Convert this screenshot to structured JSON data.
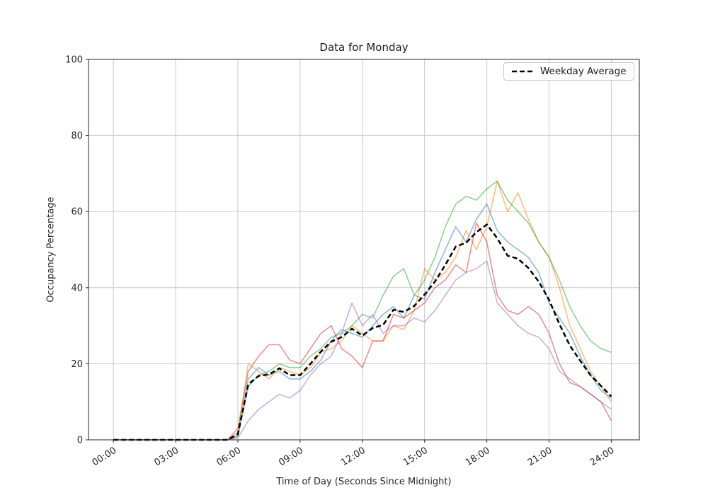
{
  "chart_data": {
    "type": "line",
    "title": "Data for Monday",
    "xlabel": "Time of Day (Seconds Since Midnight)",
    "ylabel": "Occupancy Percentage",
    "xlim": [
      -1.2,
      25.35
    ],
    "ylim": [
      0,
      100
    ],
    "grid": true,
    "grid_color": "#c9c9c9",
    "axis_color": "#262626",
    "background_color": "#ffffff",
    "legend_position": "upper right",
    "x_tick_values": [
      0,
      3,
      6,
      9,
      12,
      15,
      18,
      21,
      24
    ],
    "x_tick_labels": [
      "00:00",
      "03:00",
      "06:00",
      "09:00",
      "12:00",
      "15:00",
      "18:00",
      "21:00",
      "24:00"
    ],
    "y_tick_values": [
      0,
      20,
      40,
      60,
      80,
      100
    ],
    "x": [
      0,
      0.5,
      1,
      1.5,
      2,
      2.5,
      3,
      3.5,
      4,
      4.5,
      5,
      5.5,
      6,
      6.5,
      7,
      7.5,
      8,
      8.5,
      9,
      9.5,
      10,
      10.5,
      11,
      11.5,
      12,
      12.5,
      13,
      13.5,
      14,
      14.5,
      15,
      15.5,
      16,
      16.5,
      17,
      17.5,
      18,
      18.5,
      19,
      19.5,
      20,
      20.5,
      21,
      21.5,
      22,
      22.5,
      23,
      23.5,
      24
    ],
    "series": [
      {
        "name": "line-blue",
        "color": "#1f77b4",
        "opacity": 0.5,
        "width": 1.6,
        "dash": null,
        "values": [
          0,
          0,
          0,
          0,
          0,
          0,
          0,
          0,
          0,
          0,
          0,
          0,
          1,
          16,
          19,
          17,
          18,
          16,
          16,
          18,
          21,
          26,
          29,
          28,
          27,
          30,
          33,
          35,
          32,
          38,
          37,
          44,
          50,
          56,
          52,
          58,
          62,
          55,
          52,
          50,
          48,
          44,
          36,
          32,
          28,
          22,
          17,
          13,
          11
        ]
      },
      {
        "name": "line-orange",
        "color": "#ff7f0e",
        "opacity": 0.5,
        "width": 1.6,
        "dash": null,
        "values": [
          0,
          0,
          0,
          0,
          0,
          0,
          0,
          0,
          0,
          0,
          0,
          0,
          2,
          20,
          18,
          16,
          19,
          18,
          17,
          19,
          23,
          24,
          26,
          30,
          28,
          26,
          26,
          30,
          29,
          34,
          45,
          42,
          44,
          48,
          55,
          50,
          56,
          68,
          60,
          65,
          58,
          52,
          48,
          40,
          30,
          24,
          18,
          14,
          10
        ]
      },
      {
        "name": "line-green",
        "color": "#2ca02c",
        "opacity": 0.5,
        "width": 1.6,
        "dash": null,
        "values": [
          0,
          0,
          0,
          0,
          0,
          0,
          0,
          0,
          0,
          0,
          0,
          0,
          1,
          14,
          17,
          18,
          20,
          19,
          19,
          22,
          24,
          27,
          28,
          30,
          33,
          32,
          38,
          43,
          45,
          38,
          42,
          48,
          56,
          62,
          64,
          63,
          66,
          68,
          63,
          60,
          57,
          52,
          48,
          42,
          35,
          30,
          26,
          24,
          23
        ]
      },
      {
        "name": "line-red",
        "color": "#d62728",
        "opacity": 0.5,
        "width": 1.6,
        "dash": null,
        "values": [
          0,
          0,
          0,
          0,
          0,
          0,
          0,
          0,
          0,
          0,
          0,
          0,
          3,
          18,
          22,
          25,
          25,
          21,
          20,
          24,
          28,
          30,
          24,
          22,
          19,
          26,
          26,
          33,
          32,
          34,
          36,
          40,
          42,
          46,
          44,
          57,
          52,
          38,
          34,
          33,
          35,
          33,
          28,
          20,
          15,
          14,
          12,
          10,
          5
        ]
      },
      {
        "name": "line-purple",
        "color": "#9467bd",
        "opacity": 0.5,
        "width": 1.6,
        "dash": null,
        "values": [
          0,
          0,
          0,
          0,
          0,
          0,
          0,
          0,
          0,
          0,
          0,
          0,
          0.5,
          5,
          8,
          10,
          12,
          11,
          13,
          17,
          20,
          22,
          28,
          36,
          30,
          33,
          28,
          30,
          30,
          32,
          31,
          34,
          38,
          42,
          44,
          45,
          47,
          36,
          33,
          30,
          28,
          27,
          24,
          18,
          16,
          14,
          12,
          10,
          8
        ]
      },
      {
        "name": "weekday-average",
        "label": "Weekday Average",
        "color": "#000000",
        "opacity": 1,
        "width": 2.5,
        "dash": "7 4",
        "values": [
          0,
          0,
          0,
          0,
          0,
          0,
          0,
          0,
          0,
          0,
          0,
          0,
          1.5,
          14.6,
          16.8,
          17.2,
          18.8,
          17,
          17,
          20,
          23.2,
          25.8,
          27,
          29.2,
          27.4,
          29.4,
          30.2,
          34.2,
          33.6,
          35.2,
          38.2,
          41.6,
          46,
          50.8,
          51.8,
          54.6,
          56.6,
          53,
          48.4,
          47.6,
          45.2,
          41.6,
          36.8,
          30.4,
          24.8,
          20.8,
          17,
          14.2,
          11.4
        ]
      }
    ]
  }
}
